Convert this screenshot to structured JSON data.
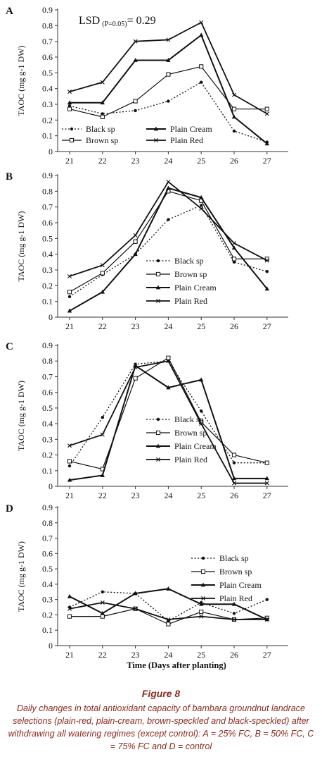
{
  "figure": {
    "title": "Figure 8",
    "caption": "Daily changes in total antioxidant capacity of bambara groundnut landrace selections (plain-red, plain-cream, brown-speckled and black-speckled) after withdrawing all watering regimes (except control): A = 25% FC, B = 50% FC, C = 75% FC and D = control"
  },
  "chart_data": [
    {
      "panel": "A",
      "type": "line",
      "annotation": "LSD",
      "annotation_sub": "(P=0.05)",
      "annotation_value": "= 0.29",
      "ylabel": "TAOC (mg g-1 DW)",
      "xlabel": "",
      "x": [
        21,
        22,
        23,
        24,
        25,
        26,
        27
      ],
      "ylim": [
        0,
        0.9
      ],
      "yticks": [
        "0",
        "0.1",
        "0.2",
        "0.3",
        "0.4",
        "0.5",
        "0.6",
        "0.7",
        "0.8",
        "0.9"
      ],
      "legend_position": "bottom",
      "series": [
        {
          "name": "Black sp",
          "values": [
            0.29,
            0.24,
            0.26,
            0.32,
            0.44,
            0.13,
            0.06
          ]
        },
        {
          "name": "Brown sp",
          "values": [
            0.27,
            0.22,
            0.32,
            0.49,
            0.54,
            0.27,
            0.27
          ]
        },
        {
          "name": "Plain Cream",
          "values": [
            0.31,
            0.31,
            0.58,
            0.58,
            0.74,
            0.22,
            0.05
          ]
        },
        {
          "name": "Plain Red",
          "values": [
            0.38,
            0.44,
            0.7,
            0.71,
            0.82,
            0.36,
            0.24
          ]
        }
      ]
    },
    {
      "panel": "B",
      "type": "line",
      "ylabel": "TAOC (mg g-1 DW)",
      "xlabel": "",
      "x": [
        21,
        22,
        23,
        24,
        25,
        26,
        27
      ],
      "ylim": [
        0,
        0.9
      ],
      "yticks": [
        "0",
        "0.1",
        "0.2",
        "0.3",
        "0.4",
        "0.5",
        "0.6",
        "0.7",
        "0.8",
        "0.9"
      ],
      "legend_position": "right",
      "series": [
        {
          "name": "Black sp",
          "values": [
            0.13,
            0.27,
            0.4,
            0.62,
            0.71,
            0.35,
            0.29
          ]
        },
        {
          "name": "Brown sp",
          "values": [
            0.16,
            0.28,
            0.48,
            0.8,
            0.74,
            0.37,
            0.37
          ]
        },
        {
          "name": "Plain Cream",
          "values": [
            0.04,
            0.16,
            0.4,
            0.82,
            0.76,
            0.44,
            0.18
          ]
        },
        {
          "name": "Plain Red",
          "values": [
            0.26,
            0.33,
            0.52,
            0.86,
            0.69,
            0.47,
            0.36
          ]
        }
      ]
    },
    {
      "panel": "C",
      "type": "line",
      "ylabel": "TAOC (mg g-1 DW)",
      "xlabel": "",
      "x": [
        21,
        22,
        23,
        24,
        25,
        26,
        27
      ],
      "ylim": [
        0,
        0.9
      ],
      "yticks": [
        "0",
        "0.1",
        "0.2",
        "0.3",
        "0.4",
        "0.5",
        "0.6",
        "0.7",
        "0.8",
        "0.9"
      ],
      "legend_position": "right",
      "series": [
        {
          "name": "Black sp",
          "values": [
            0.13,
            0.44,
            0.78,
            0.8,
            0.48,
            0.15,
            0.15
          ]
        },
        {
          "name": "Brown sp",
          "values": [
            0.16,
            0.11,
            0.69,
            0.82,
            0.41,
            0.2,
            0.15
          ]
        },
        {
          "name": "Plain Cream",
          "values": [
            0.04,
            0.07,
            0.77,
            0.63,
            0.68,
            0.05,
            0.05
          ]
        },
        {
          "name": "Plain Red",
          "values": [
            0.26,
            0.33,
            0.76,
            0.8,
            0.4,
            0.02,
            0.02
          ]
        }
      ]
    },
    {
      "panel": "D",
      "type": "line",
      "ylabel": "TAOC (mg g-1 DW)",
      "xlabel": "Time (Days after planting)",
      "x": [
        21,
        22,
        23,
        24,
        25,
        26,
        27
      ],
      "ylim": [
        0,
        0.9
      ],
      "yticks": [
        "0",
        "0.1",
        "0.2",
        "0.3",
        "0.4",
        "0.5",
        "0.6",
        "0.7",
        "0.8",
        "0.9"
      ],
      "legend_position": "top-right",
      "series": [
        {
          "name": "Black sp",
          "values": [
            0.25,
            0.35,
            0.34,
            0.16,
            0.28,
            0.21,
            0.3
          ]
        },
        {
          "name": "Brown sp",
          "values": [
            0.19,
            0.19,
            0.24,
            0.14,
            0.22,
            0.17,
            0.18
          ]
        },
        {
          "name": "Plain Cream",
          "values": [
            0.32,
            0.21,
            0.34,
            0.37,
            0.27,
            0.27,
            0.17
          ]
        },
        {
          "name": "Plain Red",
          "values": [
            0.24,
            0.28,
            0.24,
            0.17,
            0.19,
            0.17,
            0.17
          ]
        }
      ]
    }
  ]
}
